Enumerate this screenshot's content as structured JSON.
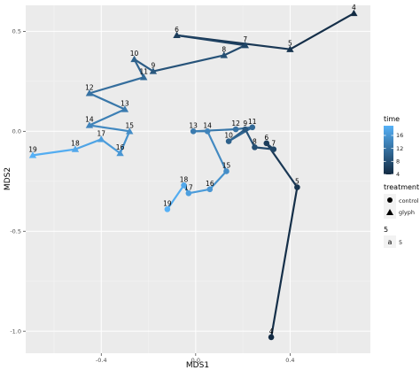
{
  "chart_data": {
    "type": "line",
    "title": "",
    "xlabel": "MDS1",
    "ylabel": "MDS2",
    "xlim": [
      -0.72,
      0.74
    ],
    "ylim": [
      -1.11,
      0.63
    ],
    "x_ticks": [
      -0.4,
      0.0,
      0.4
    ],
    "x_tick_labels": [
      "-0.4",
      "0.0",
      "0.4"
    ],
    "y_ticks": [
      0.5,
      0.0,
      -0.5,
      -1.0
    ],
    "y_tick_labels": [
      "0.5",
      "0.0",
      "-0.5",
      "-1.0"
    ],
    "grid": true,
    "background": "#EBEBEB",
    "color_scale": {
      "low": "#132B43",
      "high": "#56B1F7",
      "min": 4,
      "max": 19
    },
    "legend": {
      "placement": "right",
      "time": {
        "title": "time",
        "ticks": [
          "16",
          "12",
          "8",
          "4"
        ],
        "tick_values": [
          16,
          12,
          8,
          4
        ]
      },
      "treatment": {
        "title": "treatment",
        "items": [
          {
            "label": "control",
            "shape": "circle"
          },
          {
            "label": "glyph",
            "shape": "triangle"
          }
        ]
      },
      "size": {
        "title": "5",
        "key_glyph": "a",
        "label": "5"
      }
    },
    "series": [
      {
        "name": "control",
        "shape": "circle",
        "points": [
          {
            "time": 4,
            "x": 0.32,
            "y": -1.03
          },
          {
            "time": 5,
            "x": 0.43,
            "y": -0.28
          },
          {
            "time": 6,
            "x": 0.3,
            "y": -0.06
          },
          {
            "time": 7,
            "x": 0.33,
            "y": -0.09
          },
          {
            "time": 8,
            "x": 0.25,
            "y": -0.08
          },
          {
            "time": 9,
            "x": 0.21,
            "y": 0.01
          },
          {
            "time": 10,
            "x": 0.14,
            "y": -0.05
          },
          {
            "time": 11,
            "x": 0.24,
            "y": 0.02
          },
          {
            "time": 12,
            "x": 0.17,
            "y": 0.01
          },
          {
            "time": 13,
            "x": -0.01,
            "y": 0.0
          },
          {
            "time": 14,
            "x": 0.05,
            "y": 0.0
          },
          {
            "time": 15,
            "x": 0.13,
            "y": -0.2
          },
          {
            "time": 16,
            "x": 0.06,
            "y": -0.29
          },
          {
            "time": 17,
            "x": -0.03,
            "y": -0.31
          },
          {
            "time": 18,
            "x": -0.05,
            "y": -0.27
          },
          {
            "time": 19,
            "x": -0.12,
            "y": -0.39
          }
        ]
      },
      {
        "name": "glyph",
        "shape": "triangle",
        "points": [
          {
            "time": 4,
            "x": 0.67,
            "y": 0.59
          },
          {
            "time": 5,
            "x": 0.4,
            "y": 0.41
          },
          {
            "time": 6,
            "x": -0.08,
            "y": 0.48
          },
          {
            "time": 7,
            "x": 0.21,
            "y": 0.43
          },
          {
            "time": 8,
            "x": 0.12,
            "y": 0.38
          },
          {
            "time": 9,
            "x": -0.18,
            "y": 0.3
          },
          {
            "time": 10,
            "x": -0.26,
            "y": 0.36
          },
          {
            "time": 11,
            "x": -0.22,
            "y": 0.27
          },
          {
            "time": 12,
            "x": -0.45,
            "y": 0.19
          },
          {
            "time": 13,
            "x": -0.3,
            "y": 0.11
          },
          {
            "time": 14,
            "x": -0.45,
            "y": 0.03
          },
          {
            "time": 15,
            "x": -0.28,
            "y": 0.0
          },
          {
            "time": 16,
            "x": -0.32,
            "y": -0.11
          },
          {
            "time": 17,
            "x": -0.4,
            "y": -0.04
          },
          {
            "time": 18,
            "x": -0.51,
            "y": -0.09
          },
          {
            "time": 19,
            "x": -0.69,
            "y": -0.12
          }
        ]
      }
    ]
  }
}
